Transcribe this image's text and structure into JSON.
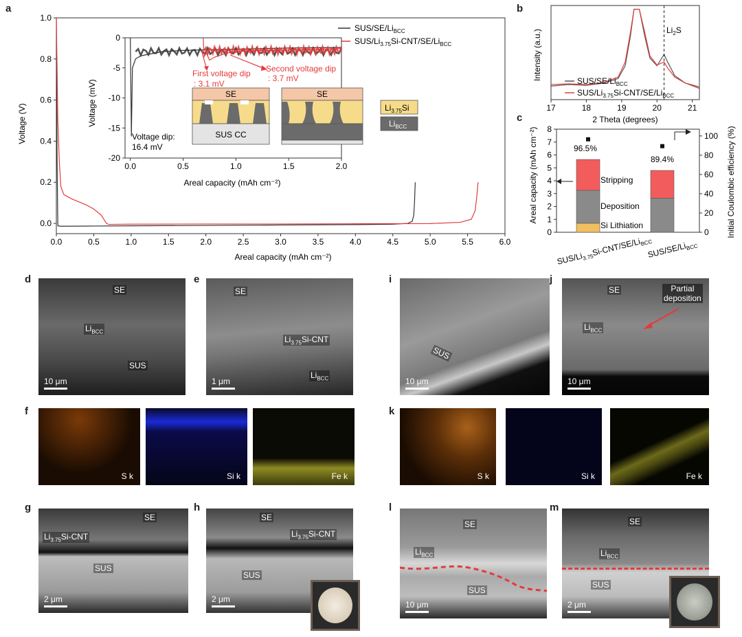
{
  "panel_letters": {
    "a": "a",
    "b": "b",
    "c": "c",
    "d": "d",
    "e": "e",
    "f": "f",
    "g": "g",
    "h": "h",
    "i": "i",
    "j": "j",
    "k": "k",
    "l": "l",
    "m": "m"
  },
  "panel_a": {
    "ylabel": "Voltage (V)",
    "xlabel": "Areal capacity (mAh cm⁻²)",
    "legend": [
      "SUS/SE/Li",
      "SUS/Li",
      "Si-CNT/SE/Li"
    ],
    "legend_sub": [
      "BCC",
      "3.75",
      "BCC"
    ],
    "inset": {
      "ylabel": "Voltage (mV)",
      "xlabel": "Areal capacity (mAh cm⁻²)",
      "first_dip": "First voltage dip",
      "first_dip_val": ": 3.1 mV",
      "second_dip": "Second voltage dip",
      "second_dip_val": ": 3.7 mV",
      "vdip": "Voltage dip:",
      "vdip_val": "16.4 mV",
      "se_label": "SE",
      "sus_cc": "SUS CC",
      "key_li375": "Li",
      "key_li375_sub": "3.75",
      "key_li375_tail": "Si",
      "key_libcc": "Li",
      "key_libcc_sub": "BCC"
    }
  },
  "panel_b": {
    "ylabel": "Intensity (a.u.)",
    "xlabel": "2 Theta (degrees)",
    "li2s": "Li",
    "li2s_sub": "2",
    "li2s_tail": "S",
    "legend_1": "SUS/SE/Li",
    "legend_1_sub": "BCC",
    "legend_2a": "SUS/Li",
    "legend_2a_sub": "3.75",
    "legend_2b": "Si-CNT/SE/Li",
    "legend_2b_sub": "BCC"
  },
  "panel_c": {
    "ylabel_left": "Areal capacity (mAh cm⁻²)",
    "ylabel_right": "Initial Coulombic efficiency (%)",
    "eff1": "96.5%",
    "eff2": "89.4%",
    "stripping": "Stripping",
    "deposition": "Deposition",
    "si_lith": "Si Lithiation",
    "x1a": "SUS/Li",
    "x1a_sub": "3.75",
    "x1b": "Si-CNT/SE/Li",
    "x1b_sub": "BCC",
    "x2a": "SUS/SE/Li",
    "x2a_sub": "BCC"
  },
  "panel_d": {
    "se": "SE",
    "li": "Li",
    "li_sub": "BCC",
    "sus": "SUS",
    "scale": "10 μm"
  },
  "panel_e": {
    "se": "SE",
    "lisi": "Li",
    "lisi_sub": "3.75",
    "lisi_tail": "Si-CNT",
    "li": "Li",
    "li_sub": "BCC",
    "scale": "1 μm"
  },
  "panel_f": {
    "s": "S k",
    "si": "Si k",
    "fe": "Fe k"
  },
  "panel_g": {
    "se": "SE",
    "lisi": "Li",
    "lisi_sub": "3.75",
    "lisi_tail": "Si-CNT",
    "sus": "SUS",
    "scale": "2 μm"
  },
  "panel_h": {
    "se": "SE",
    "lisi": "Li",
    "lisi_sub": "3.75",
    "lisi_tail": "Si-CNT",
    "sus": "SUS",
    "scale": "2 μm"
  },
  "panel_i": {
    "sus": "SUS",
    "scale": "10 μm"
  },
  "panel_j": {
    "se": "SE",
    "li": "Li",
    "li_sub": "BCC",
    "partial1": "Partial",
    "partial2": "deposition",
    "scale": "10 μm"
  },
  "panel_k": {
    "s": "S k",
    "si": "Si k",
    "fe": "Fe k"
  },
  "panel_l": {
    "se": "SE",
    "li": "Li",
    "li_sub": "BCC",
    "sus": "SUS",
    "scale": "10 μm"
  },
  "panel_m": {
    "se": "SE",
    "li": "Li",
    "li_sub": "BCC",
    "sus": "SUS",
    "scale": "2 μm"
  },
  "colors": {
    "black_series": "#333333",
    "red_series": "#e53a3a",
    "li375_fill": "#f6dc8a",
    "libcc_fill": "#6b6b6b",
    "se_fill": "#f4c7a8",
    "s_map": "#d07a20",
    "si_map": "#1c2be0",
    "fe_map": "#c9c430"
  },
  "chart_data": [
    {
      "panel": "a",
      "type": "line",
      "xlabel": "Areal capacity (mAh cm⁻²)",
      "ylabel": "Voltage (V)",
      "xlim": [
        0.0,
        6.0
      ],
      "ylim": [
        -0.05,
        1.0
      ],
      "x_ticks": [
        "0.0",
        "0.5",
        "1.0",
        "1.5",
        "2.0",
        "2.5",
        "3.0",
        "3.5",
        "4.0",
        "4.5",
        "5.0",
        "5.5",
        "6.0"
      ],
      "y_ticks": [
        "0.0",
        "0.2",
        "0.4",
        "0.6",
        "0.8",
        "1.0"
      ],
      "series": [
        {
          "name": "SUS/SE/LiBCC",
          "color": "#333333",
          "x": [
            0.0,
            0.01,
            0.02,
            0.05,
            0.5,
            1.0,
            2.0,
            3.0,
            4.0,
            4.5,
            4.7,
            4.76,
            4.78,
            4.79,
            4.8
          ],
          "y": [
            1.0,
            0.3,
            -0.012,
            -0.014,
            -0.013,
            -0.012,
            -0.01,
            -0.008,
            -0.006,
            -0.004,
            0.0,
            0.01,
            0.04,
            0.1,
            0.2
          ]
        },
        {
          "name": "SUS/Li3.75Si-CNT/SE/LiBCC",
          "color": "#e53a3a",
          "x": [
            0.0,
            0.02,
            0.04,
            0.06,
            0.1,
            0.2,
            0.3,
            0.4,
            0.5,
            0.6,
            0.67,
            0.7,
            1.0,
            2.0,
            3.0,
            4.0,
            5.0,
            5.4,
            5.55,
            5.6,
            5.62,
            5.64
          ],
          "y": [
            1.0,
            0.5,
            0.3,
            0.18,
            0.14,
            0.12,
            0.105,
            0.09,
            0.07,
            0.04,
            0.0,
            -0.005,
            -0.004,
            -0.003,
            -0.003,
            -0.002,
            -0.001,
            0.005,
            0.02,
            0.06,
            0.12,
            0.2
          ]
        }
      ]
    },
    {
      "panel": "a-inset",
      "type": "line",
      "xlabel": "Areal capacity (mAh cm⁻²)",
      "ylabel": "Voltage (mV)",
      "xlim": [
        -0.05,
        2.0
      ],
      "ylim": [
        -20,
        0
      ],
      "x_ticks": [
        "0.0",
        "0.5",
        "1.0",
        "1.5",
        "2.0"
      ],
      "y_ticks": [
        "0",
        "-5",
        "-10",
        "-15",
        "-20"
      ],
      "series": [
        {
          "name": "SUS/SE/LiBCC",
          "color": "#333333",
          "x": [
            0.0,
            0.01,
            0.02,
            0.05,
            0.1,
            0.3,
            0.5,
            0.7,
            1.0,
            1.5,
            2.0
          ],
          "y": [
            0,
            -16.4,
            -5,
            -3.5,
            -3.0,
            -2.3,
            -2.1,
            -2.0,
            -1.9,
            -1.7,
            -1.6
          ]
        },
        {
          "name": "SUS/Li3.75Si-CNT/SE/LiBCC",
          "color": "#e53a3a",
          "x": [
            0.69,
            0.7,
            0.72,
            0.75,
            0.8,
            0.9,
            1.0,
            1.2,
            1.5,
            2.0
          ],
          "y": [
            0,
            -3.1,
            -2.5,
            -3.7,
            -3.2,
            -2.6,
            -2.3,
            -2.1,
            -2.0,
            -1.8
          ]
        }
      ]
    },
    {
      "panel": "b",
      "type": "line",
      "xlabel": "2 Theta (degrees)",
      "ylabel": "Intensity (a.u.)",
      "xlim": [
        17,
        21.2
      ],
      "x_ticks": [
        "17",
        "18",
        "19",
        "20",
        "21"
      ],
      "series": [
        {
          "name": "SUS/SE/LiBCC",
          "color": "#555555",
          "x": [
            17.0,
            17.5,
            18.0,
            18.5,
            18.9,
            19.1,
            19.25,
            19.35,
            19.5,
            19.65,
            19.8,
            20.0,
            20.2,
            20.3,
            20.5,
            20.8,
            21.2
          ],
          "y": [
            0.18,
            0.2,
            0.19,
            0.22,
            0.28,
            0.45,
            0.85,
            1.2,
            1.2,
            0.85,
            0.55,
            0.45,
            0.6,
            0.5,
            0.32,
            0.22,
            0.15
          ]
        },
        {
          "name": "SUS/Li3.75Si-CNT/SE/LiBCC",
          "color": "#e53a3a",
          "x": [
            17.0,
            17.5,
            18.0,
            18.5,
            18.9,
            19.1,
            19.25,
            19.35,
            19.5,
            19.65,
            19.8,
            20.0,
            20.2,
            20.3,
            20.5,
            20.8,
            21.2
          ],
          "y": [
            0.2,
            0.21,
            0.2,
            0.23,
            0.3,
            0.5,
            0.9,
            1.2,
            1.2,
            0.9,
            0.58,
            0.46,
            0.5,
            0.42,
            0.3,
            0.22,
            0.17
          ]
        }
      ],
      "annotation": {
        "label": "Li2S",
        "x": 20.2
      }
    },
    {
      "panel": "c",
      "type": "bar",
      "categories": [
        "SUS/Li3.75Si-CNT/SE/LiBCC",
        "SUS/SE/LiBCC"
      ],
      "ylabel": "Areal capacity (mAh cm⁻²)",
      "ylabel_right": "Initial Coulombic efficiency (%)",
      "ylim": [
        0,
        8
      ],
      "ylim_right": [
        0,
        107
      ],
      "y_ticks": [
        "0",
        "1",
        "2",
        "3",
        "4",
        "5",
        "6",
        "7",
        "8"
      ],
      "y_ticks_right": [
        "0",
        "20",
        "40",
        "60",
        "80",
        "100"
      ],
      "series": [
        {
          "name": "Si Lithiation",
          "values": [
            0.7,
            0.0
          ],
          "color": "#f0c060"
        },
        {
          "name": "Deposition",
          "values": [
            2.55,
            2.65
          ],
          "color": "#8a8a8a"
        },
        {
          "name": "Stripping",
          "values": [
            2.4,
            2.15
          ],
          "color": "#f25c5c"
        }
      ],
      "efficiency": [
        96.5,
        89.4
      ]
    }
  ]
}
